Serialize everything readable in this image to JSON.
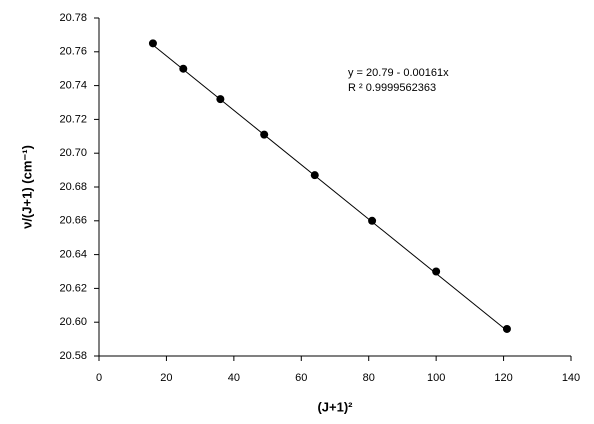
{
  "chart_data": {
    "type": "scatter",
    "x_label": "(J+1)²",
    "y_label": "ν/(J+1)  (cm⁻¹)",
    "annotations": [
      "y = 20.79 - 0.00161x",
      "R ²   0.9999562363"
    ],
    "x": [
      16,
      25,
      36,
      49,
      64,
      81,
      100,
      121
    ],
    "series": [
      {
        "color": "#000000",
        "values": [
          20.765,
          20.75,
          20.732,
          20.711,
          20.687,
          20.66,
          20.63,
          20.596
        ]
      }
    ],
    "fit_line": {
      "x": [
        16,
        121
      ],
      "values": [
        20.764,
        20.595
      ],
      "color": "#000000"
    },
    "xlim": [
      0,
      140
    ],
    "xticks": [
      0,
      20,
      40,
      60,
      80,
      100,
      120,
      140
    ],
    "ylim": [
      20.58,
      20.78
    ],
    "yticks": [
      20.58,
      {
        "value": 20.6,
        "label": "20.60"
      },
      20.62,
      20.64,
      20.66,
      20.68,
      {
        "value": 20.7,
        "label": "20.70"
      },
      20.72,
      20.74,
      20.76,
      20.78
    ]
  }
}
